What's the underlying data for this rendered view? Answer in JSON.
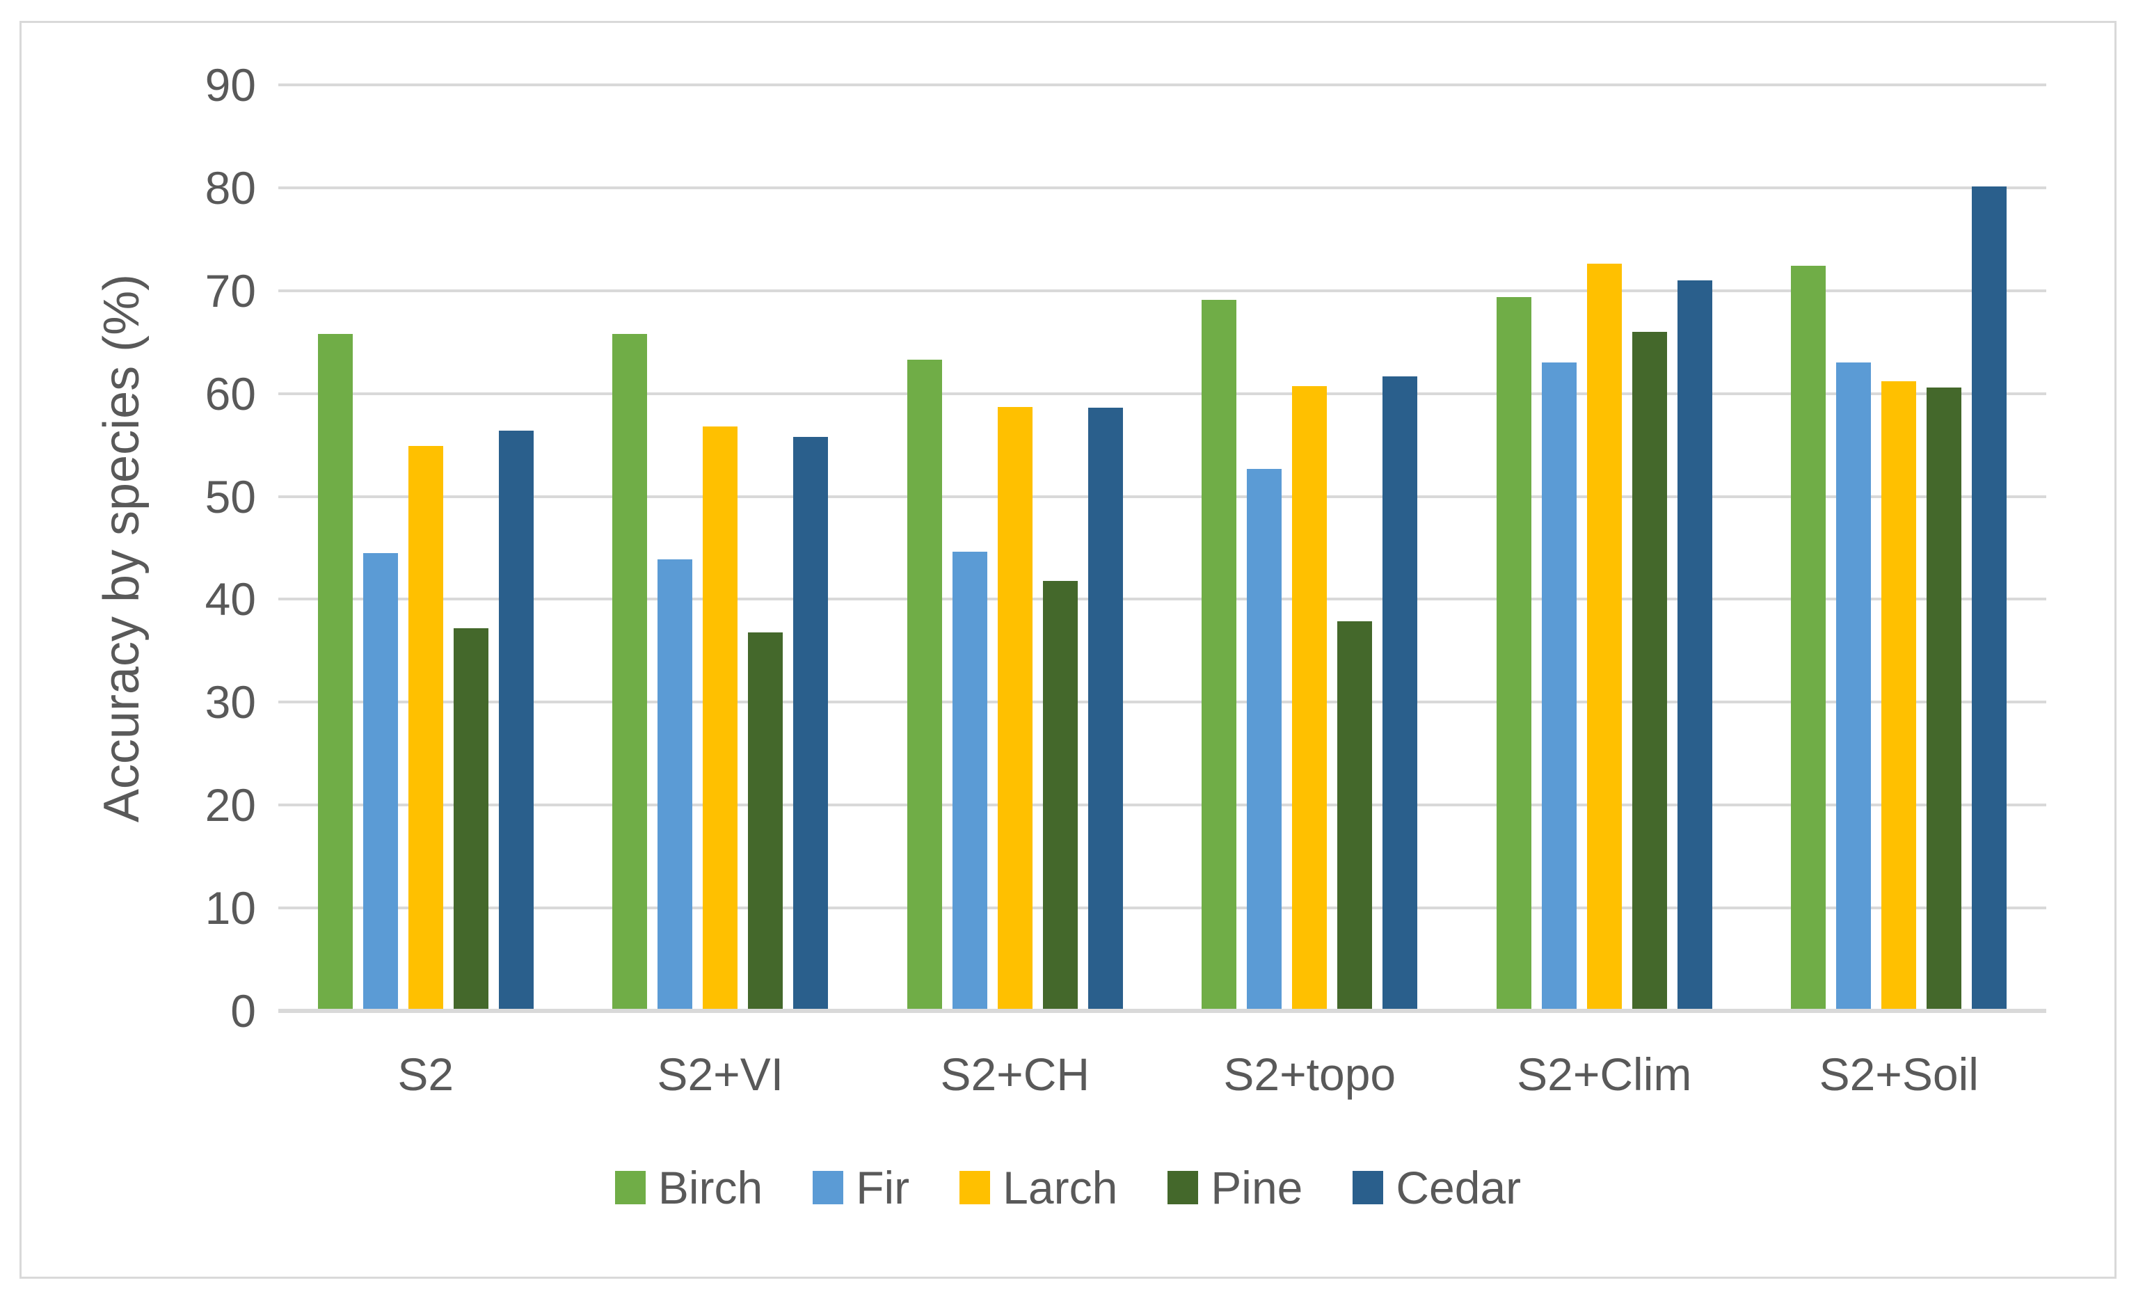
{
  "chart_data": {
    "type": "bar",
    "title": "",
    "xlabel": "",
    "ylabel": "Accuracy by species (%)",
    "ylim": [
      0,
      90
    ],
    "yticks": [
      0,
      10,
      20,
      30,
      40,
      50,
      60,
      70,
      80,
      90
    ],
    "grid": true,
    "legend_position": "bottom",
    "categories": [
      "S2",
      "S2+VI",
      "S2+CH",
      "S2+topo",
      "S2+Clim",
      "S2+Soil"
    ],
    "series": [
      {
        "name": "Birch",
        "color": "#70AD47",
        "values": [
          65.8,
          65.8,
          63.3,
          69.1,
          69.4,
          72.4
        ]
      },
      {
        "name": "Fir",
        "color": "#5B9BD5",
        "values": [
          44.5,
          43.9,
          44.6,
          52.7,
          63.0,
          63.0
        ]
      },
      {
        "name": "Larch",
        "color": "#FFC000",
        "values": [
          54.9,
          56.8,
          58.7,
          60.7,
          72.6,
          61.2
        ]
      },
      {
        "name": "Pine",
        "color": "#44682B",
        "values": [
          37.2,
          36.8,
          41.8,
          37.9,
          66.0,
          60.6
        ]
      },
      {
        "name": "Cedar",
        "color": "#2A5F8C",
        "values": [
          56.4,
          55.8,
          58.6,
          61.7,
          71.0,
          80.1
        ]
      }
    ]
  },
  "styles": {
    "grid_color": "#D9D9D9",
    "axis_line_color": "#D9D9D9",
    "frame_border_color": "#D9D9D9",
    "text_color": "#595959",
    "background": "#ffffff"
  }
}
